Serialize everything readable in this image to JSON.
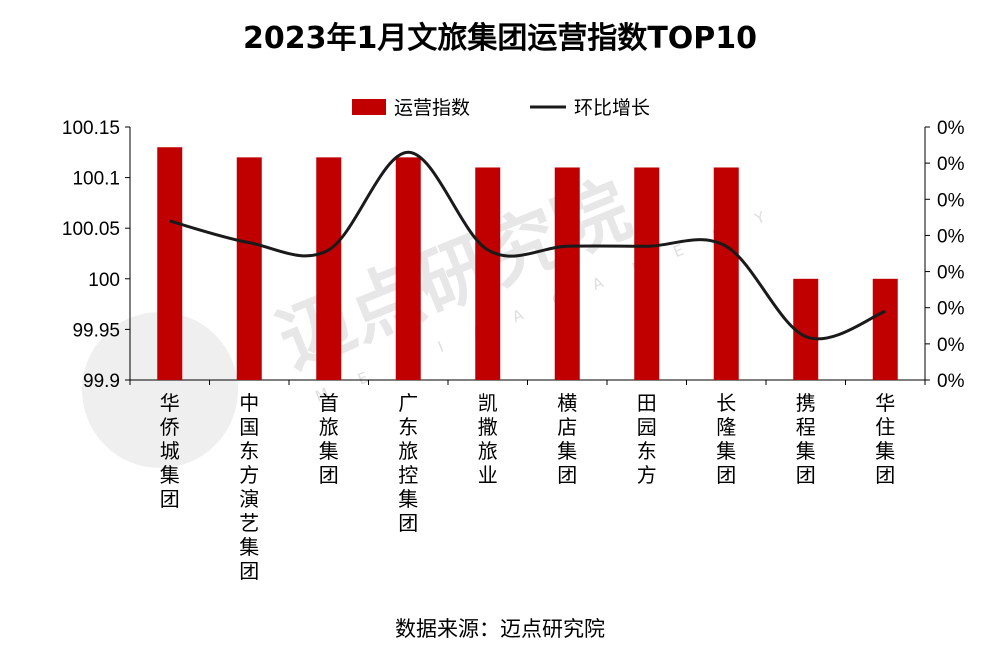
{
  "watermark": {
    "text": "迈点研究院",
    "sub": "M E D I A   A C A D E M Y"
  },
  "source_text": "数据来源：迈点研究院",
  "colors": {
    "bar": "#C00000",
    "line": "#1a1a1a"
  },
  "chart_data": {
    "type": "bar",
    "title": "2023年1月文旅集团运营指数TOP10",
    "categories": [
      "华侨城集团",
      "中国东方演艺集团",
      "首旅集团",
      "广东旅控集团",
      "凯撒旅业",
      "横店集团",
      "田园东方",
      "长隆集团",
      "携程集团",
      "华住集团"
    ],
    "series": [
      {
        "name": "运营指数",
        "type": "bar",
        "axis": "left",
        "values": [
          100.13,
          100.12,
          100.12,
          100.12,
          100.11,
          100.11,
          100.11,
          100.11,
          100.0,
          100.0
        ]
      },
      {
        "name": "环比增长",
        "type": "line",
        "axis": "right",
        "smooth": true,
        "values": [
          0.044,
          0.038,
          0.036,
          0.063,
          0.036,
          0.037,
          0.037,
          0.037,
          0.012,
          0.019
        ]
      }
    ],
    "ylim": [
      99.9,
      100.15
    ],
    "yticks": [
      "99.9",
      "99.95",
      "100",
      "100.05",
      "100.1",
      "100.15"
    ],
    "y2lim": [
      0,
      0.07
    ],
    "y2ticks": [
      "0%",
      "0%",
      "0%",
      "0%",
      "0%",
      "0%",
      "0%",
      "0%"
    ],
    "legend_position": "top",
    "grid": false
  }
}
